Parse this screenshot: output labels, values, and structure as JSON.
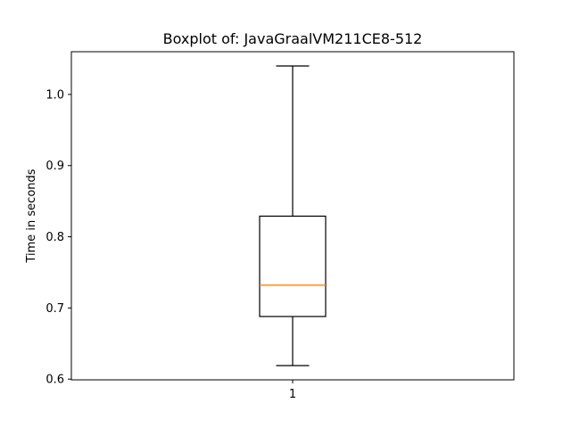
{
  "chart_data": {
    "type": "boxplot",
    "title": "Boxplot of: JavaGraalVM211CE8-512",
    "xlabel": "",
    "ylabel": "Time in seconds",
    "categories": [
      "1"
    ],
    "boxes": [
      {
        "category": "1",
        "whisker_low": 0.619,
        "q1": 0.688,
        "median": 0.732,
        "q3": 0.829,
        "whisker_high": 1.04
      }
    ],
    "ylim": [
      0.599,
      1.06
    ],
    "yticks": [
      "0.6",
      "0.7",
      "0.8",
      "0.9",
      "1.0"
    ],
    "grid": false,
    "colors": {
      "box": "#000000",
      "median": "#ff7f0e",
      "whisker": "#000000"
    }
  }
}
